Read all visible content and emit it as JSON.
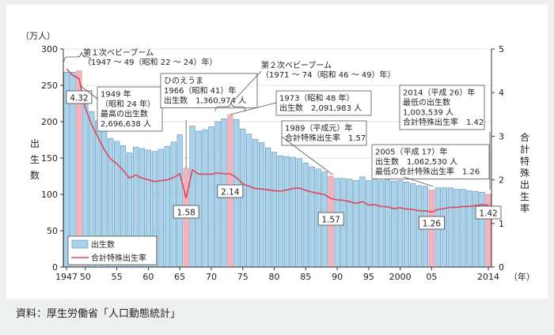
{
  "chart_data": {
    "type": "bar",
    "title": "",
    "y_unit": "（万人）",
    "ylabel": "出生数",
    "y2label": "合計特殊出生率",
    "x_unit": "（年）",
    "ylim": [
      0,
      300
    ],
    "y2lim": [
      0,
      5
    ],
    "y_ticks": [
      0,
      50,
      100,
      150,
      200,
      250,
      300
    ],
    "y2_ticks": [
      0,
      1,
      2,
      3,
      4,
      5
    ],
    "x_tick_labels": [
      {
        "year": 1947,
        "label": "1947"
      },
      {
        "year": 1950,
        "label": "50"
      },
      {
        "year": 1955,
        "label": "55"
      },
      {
        "year": 1960,
        "label": "60"
      },
      {
        "year": 1965,
        "label": "65"
      },
      {
        "year": 1970,
        "label": "70"
      },
      {
        "year": 1975,
        "label": "75"
      },
      {
        "year": 1980,
        "label": "80"
      },
      {
        "year": 1985,
        "label": "85"
      },
      {
        "year": 1990,
        "label": "90"
      },
      {
        "year": 1995,
        "label": "95"
      },
      {
        "year": 2000,
        "label": "2000"
      },
      {
        "year": 2005,
        "label": "05"
      },
      {
        "year": 2014,
        "label": "2014"
      }
    ],
    "legend": {
      "position": "bottom-left",
      "bars": "出生数",
      "line": "合計特殊出生率"
    },
    "colors": {
      "bar": "#a9d3ea",
      "bar_stroke": "#5d8fb5",
      "highlight": "#f2b5c0",
      "line": "#e0455f"
    },
    "x": [
      1947,
      1948,
      1949,
      1950,
      1951,
      1952,
      1953,
      1954,
      1955,
      1956,
      1957,
      1958,
      1959,
      1960,
      1961,
      1962,
      1963,
      1964,
      1965,
      1966,
      1967,
      1968,
      1969,
      1970,
      1971,
      1972,
      1973,
      1974,
      1975,
      1976,
      1977,
      1978,
      1979,
      1980,
      1981,
      1982,
      1983,
      1984,
      1985,
      1986,
      1987,
      1988,
      1989,
      1990,
      1991,
      1992,
      1993,
      1994,
      1995,
      1996,
      1997,
      1998,
      1999,
      2000,
      2001,
      2002,
      2003,
      2004,
      2005,
      2006,
      2007,
      2008,
      2009,
      2010,
      2011,
      2012,
      2013,
      2014
    ],
    "series": [
      {
        "name": "出生数",
        "type": "bar",
        "values": [
          268,
          268,
          270,
          234,
          214,
          201,
          187,
          177,
          173,
          167,
          157,
          165,
          163,
          161,
          159,
          162,
          166,
          172,
          182,
          136,
          194,
          187,
          189,
          193,
          200,
          204,
          209,
          203,
          190,
          183,
          176,
          171,
          164,
          158,
          153,
          152,
          151,
          149,
          143,
          138,
          135,
          131,
          125,
          122,
          122,
          121,
          119,
          124,
          119,
          121,
          119,
          120,
          118,
          119,
          117,
          115,
          112,
          111,
          106,
          109,
          109,
          109,
          107,
          107,
          105,
          104,
          103,
          100
        ]
      },
      {
        "name": "合計特殊出生率",
        "type": "line",
        "values": [
          4.54,
          4.4,
          4.32,
          3.65,
          3.26,
          2.98,
          2.69,
          2.48,
          2.37,
          2.22,
          2.04,
          2.11,
          2.04,
          2.0,
          1.96,
          1.98,
          2.0,
          2.05,
          2.14,
          1.58,
          2.23,
          2.13,
          2.13,
          2.13,
          2.16,
          2.14,
          2.14,
          2.05,
          1.91,
          1.85,
          1.8,
          1.79,
          1.77,
          1.75,
          1.74,
          1.77,
          1.8,
          1.81,
          1.76,
          1.72,
          1.69,
          1.66,
          1.57,
          1.54,
          1.53,
          1.5,
          1.46,
          1.5,
          1.42,
          1.43,
          1.39,
          1.38,
          1.34,
          1.36,
          1.33,
          1.32,
          1.29,
          1.29,
          1.26,
          1.32,
          1.34,
          1.37,
          1.37,
          1.39,
          1.39,
          1.41,
          1.43,
          1.42
        ]
      }
    ],
    "highlight_years": [
      1949,
      1966,
      1973,
      1989,
      2005,
      2014
    ],
    "rate_labels": [
      {
        "year": 1949,
        "text": "4.32"
      },
      {
        "year": 1966,
        "text": "1.58"
      },
      {
        "year": 1973,
        "text": "2.14"
      },
      {
        "year": 1989,
        "text": "1.57"
      },
      {
        "year": 2005,
        "text": "1.26"
      },
      {
        "year": 2014,
        "text": "1.42"
      }
    ],
    "annotations": {
      "boom1": [
        "第１次ベビーブーム",
        "（1947 ～ 49（昭和 22 ～ 24）年）"
      ],
      "boom2": [
        "第２次ベビーブーム",
        "（1971 ～ 74（昭和 46 ～ 49）年）"
      ],
      "y1949": [
        "1949 年",
        "（昭和 24 年）",
        "最高の出生数",
        "2,696,638 人"
      ],
      "hinoe": [
        "ひのえうま",
        "1966（昭和 41）年",
        "出生数　1,360,974 人"
      ],
      "y1973": [
        "1973（昭和 48 年）",
        "出生数　2,091,983 人"
      ],
      "y1989": [
        "1989（平成元）年",
        "合計特殊出生率　1.57"
      ],
      "y2005": [
        "2005（平成 17）年",
        "出生数　1,062,530 人",
        "最低の合計特殊出生率　1.26"
      ],
      "y2014": [
        "2014（平成 26）年",
        "最低の出生数",
        "1,003,539 人",
        "合計特殊出生率　1.42"
      ]
    }
  },
  "source": "資料：厚生労働省「人口動態統計」"
}
